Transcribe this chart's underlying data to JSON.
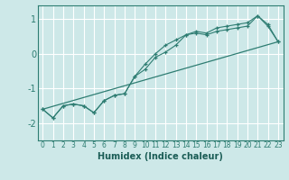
{
  "xlabel": "Humidex (Indice chaleur)",
  "ylabel": "",
  "background_color": "#cde8e8",
  "grid_color": "#ffffff",
  "line_color": "#2e7d72",
  "xlim": [
    -0.5,
    23.5
  ],
  "ylim": [
    -2.5,
    1.4
  ],
  "yticks": [
    -2,
    -1,
    0,
    1
  ],
  "xticks": [
    0,
    1,
    2,
    3,
    4,
    5,
    6,
    7,
    8,
    9,
    10,
    11,
    12,
    13,
    14,
    15,
    16,
    17,
    18,
    19,
    20,
    21,
    22,
    23
  ],
  "line1_x": [
    0,
    1,
    2,
    3,
    4,
    5,
    6,
    7,
    8,
    9,
    10,
    11,
    12,
    13,
    14,
    15,
    16,
    17,
    18,
    19,
    20,
    21,
    22,
    23
  ],
  "line1_y": [
    -1.6,
    -1.85,
    -1.5,
    -1.45,
    -1.5,
    -1.7,
    -1.35,
    -1.2,
    -1.15,
    -0.65,
    -0.45,
    -0.1,
    0.05,
    0.25,
    0.55,
    0.6,
    0.55,
    0.65,
    0.7,
    0.75,
    0.8,
    1.1,
    0.85,
    0.35
  ],
  "line2_x": [
    0,
    1,
    2,
    3,
    4,
    5,
    6,
    7,
    8,
    9,
    10,
    11,
    12,
    13,
    14,
    15,
    16,
    17,
    18,
    19,
    20,
    21,
    22,
    23
  ],
  "line2_y": [
    -1.6,
    -1.85,
    -1.5,
    -1.45,
    -1.5,
    -1.7,
    -1.35,
    -1.2,
    -1.15,
    -0.65,
    -0.3,
    0.0,
    0.25,
    0.4,
    0.55,
    0.65,
    0.6,
    0.75,
    0.8,
    0.85,
    0.9,
    1.1,
    0.8,
    0.35
  ],
  "line3_x": [
    0,
    23
  ],
  "line3_y": [
    -1.6,
    0.35
  ],
  "xlabel_fontsize": 7,
  "xlabel_color": "#1a5c55",
  "tick_labelsize": 6,
  "tick_color": "#2e7d72"
}
